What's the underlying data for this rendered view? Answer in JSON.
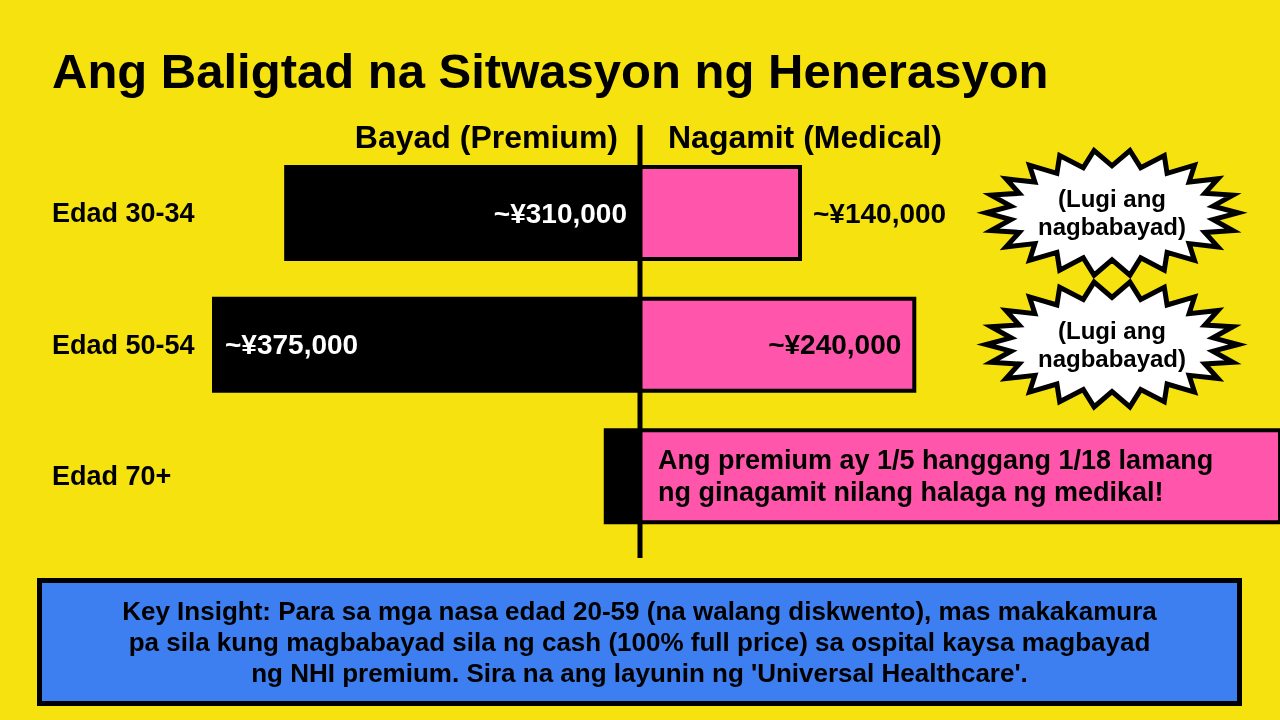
{
  "chart_data": [
    {
      "type": "bar",
      "title": "Ang Baligtad na Sitwasyon ng Henerasyon",
      "orientation": "horizontal",
      "categories": [
        "Edad 30-34",
        "Edad 50-54",
        "Edad 70+"
      ],
      "series": [
        {
          "name": "Bayad (Premium)",
          "color": "#000000",
          "values": [
            310000,
            375000,
            30000
          ],
          "value_labels": [
            "~¥310,000",
            "~¥375,000",
            null
          ]
        }
      ],
      "xlim": [
        375000,
        0
      ],
      "tick_labels": "y",
      "ref_lines": [
        {
          "axis": "x",
          "value": 0,
          "color": "#000000"
        }
      ],
      "annotations": [
        "Key Insight: Para sa mga nasa edad 20-59 (na walang diskwento), mas makakamura pa sila kung magbabayad sila ng cash (100% full price) sa ospital kaysa magbayad ng NHI premium. Sira na ang layunin ng 'Universal Healthcare'."
      ]
    },
    {
      "type": "bar",
      "orientation": "horizontal",
      "categories": [
        null,
        null,
        null
      ],
      "series": [
        {
          "name": "Nagamit (Medical)",
          "color": "#ff55aa",
          "values": [
            140000,
            240000,
            560000
          ],
          "value_labels": [
            "~¥140,000",
            "~¥240,000",
            null
          ]
        }
      ],
      "xlim": [
        0,
        560000
      ],
      "tick_labels": false,
      "annotations": [
        "(Lugi ang nagbabayad)",
        "(Lugi ang nagbabayad)",
        "Ang premium ay 1/5 hanggang 1/18 lamang ng ginagamit nilang halaga ng medikal!"
      ]
    }
  ]
}
